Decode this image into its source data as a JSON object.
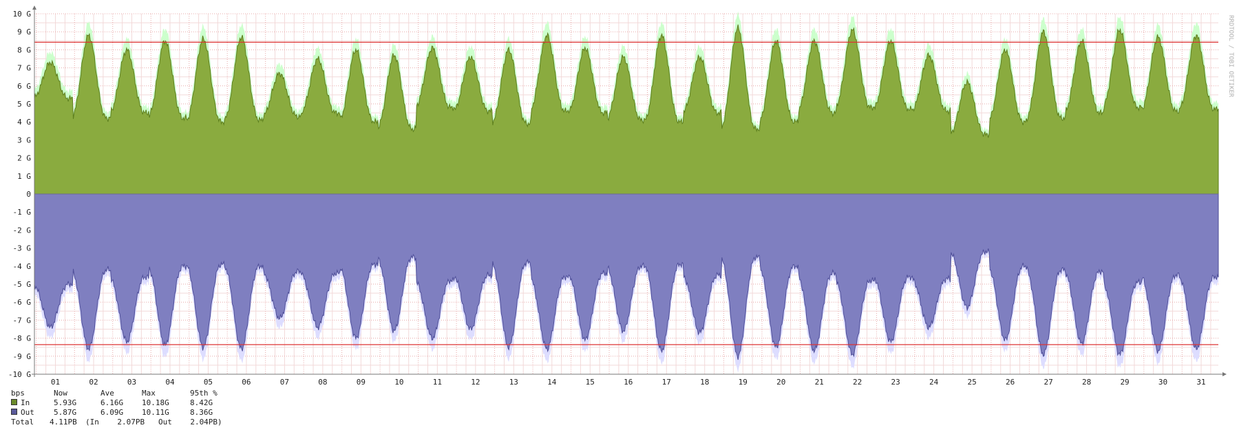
{
  "chart_data": {
    "type": "area",
    "xlabel": "",
    "ylabel": "",
    "unit": "bps",
    "watermark": "RRDTOOL / TOBI OETIKER",
    "x_ticks": [
      "01",
      "02",
      "03",
      "04",
      "05",
      "06",
      "07",
      "08",
      "09",
      "10",
      "11",
      "12",
      "13",
      "14",
      "15",
      "16",
      "17",
      "18",
      "19",
      "20",
      "21",
      "22",
      "23",
      "24",
      "25",
      "26",
      "27",
      "28",
      "29",
      "30",
      "31"
    ],
    "y_ticks": [
      "10 G",
      "9 G",
      "8 G",
      "7 G",
      "6 G",
      "5 G",
      "4 G",
      "3 G",
      "2 G",
      "1 G",
      "0",
      "-1 G",
      "-2 G",
      "-3 G",
      "-4 G",
      "-5 G",
      "-6 G",
      "-7 G",
      "-8 G",
      "-9 G",
      "-10 G"
    ],
    "ylim": [
      -10,
      10
    ],
    "x_range_days": [
      0.45,
      31.45
    ],
    "grid": true,
    "percentile_lines": {
      "in": 8.42,
      "out": -8.36
    },
    "series": [
      {
        "name": "In",
        "color": "#8aab3f",
        "max_color": "#ccffcc",
        "daily_peak_gbps": [
          7.3,
          8.8,
          8.0,
          8.5,
          8.6,
          8.7,
          6.7,
          7.5,
          8.0,
          7.7,
          8.1,
          7.6,
          8.0,
          8.8,
          8.1,
          7.6,
          8.8,
          7.6,
          9.2,
          8.5,
          8.5,
          9.1,
          8.5,
          7.7,
          6.2,
          8.0,
          9.0,
          8.5,
          9.1,
          8.7,
          8.8
        ],
        "daily_trough_gbps": [
          5.3,
          4.2,
          4.5,
          4.2,
          4.0,
          4.1,
          4.3,
          4.5,
          4.0,
          3.6,
          4.8,
          4.6,
          3.9,
          4.6,
          4.5,
          4.1,
          4.0,
          4.5,
          3.6,
          4.0,
          4.5,
          4.8,
          4.7,
          4.6,
          3.3,
          4.0,
          4.2,
          4.5,
          4.8,
          4.6,
          4.7
        ],
        "now": "5.93G",
        "ave": "6.16G",
        "max": "10.18G",
        "p95": "8.42G"
      },
      {
        "name": "Out",
        "color": "#7f7fc0",
        "max_color": "#ddddff",
        "daily_peak_gbps": [
          -7.4,
          -8.6,
          -8.2,
          -8.4,
          -8.5,
          -8.6,
          -6.9,
          -7.4,
          -8.0,
          -7.6,
          -8.0,
          -7.5,
          -8.5,
          -8.6,
          -8.1,
          -7.6,
          -8.7,
          -7.7,
          -9.0,
          -8.5,
          -8.7,
          -8.9,
          -8.2,
          -7.4,
          -6.3,
          -8.1,
          -8.9,
          -8.3,
          -8.9,
          -8.7,
          -8.6
        ],
        "daily_trough_gbps": [
          -5.0,
          -4.2,
          -4.6,
          -4.0,
          -3.9,
          -4.0,
          -4.3,
          -4.4,
          -3.9,
          -3.5,
          -4.8,
          -4.5,
          -3.8,
          -4.6,
          -4.4,
          -4.0,
          -3.9,
          -4.5,
          -3.5,
          -4.0,
          -4.4,
          -4.8,
          -4.6,
          -4.7,
          -3.2,
          -4.0,
          -4.2,
          -4.3,
          -4.9,
          -4.5,
          -4.6
        ],
        "now": "5.87G",
        "ave": "6.09G",
        "max": "10.11G",
        "p95": "8.36G"
      }
    ]
  },
  "legend": {
    "header": {
      "unit": "bps",
      "now": "Now",
      "ave": "Ave",
      "max": "Max",
      "p95": "95th %"
    },
    "in": {
      "label": "In",
      "now": "5.93G",
      "ave": "6.16G",
      "max": "10.18G",
      "p95": "8.42G"
    },
    "out": {
      "label": "Out",
      "now": "5.87G",
      "ave": "6.09G",
      "max": "10.11G",
      "p95": "8.36G"
    },
    "total": {
      "label": "Total",
      "value": "4.11PB",
      "detail": "(In    2.07PB   Out    2.04PB)"
    }
  }
}
